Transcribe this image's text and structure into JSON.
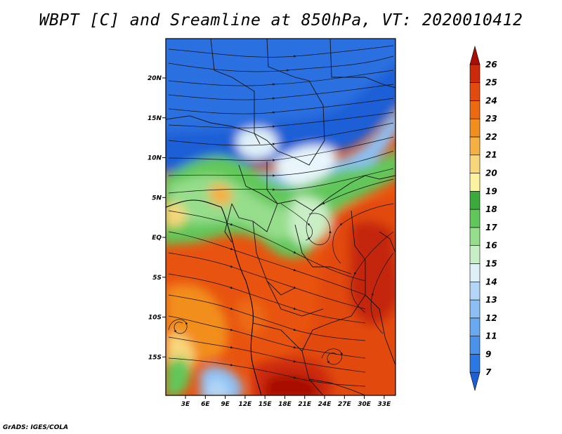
{
  "title": "WBPT [C] and Sreamline at 850hPa, VT: 2020010412",
  "footer": "GrADS: IGES/COLA",
  "map": {
    "variable": "WBPT",
    "units": "C",
    "level": "850hPa",
    "lat_labels": [
      "20N",
      "15N",
      "10N",
      "5N",
      "EQ",
      "5S",
      "10S",
      "15S"
    ],
    "lat_values": [
      20,
      15,
      10,
      5,
      0,
      -5,
      -10,
      -15
    ],
    "lon_labels": [
      "3E",
      "6E",
      "9E",
      "12E",
      "15E",
      "18E",
      "21E",
      "24E",
      "27E",
      "30E",
      "33E"
    ],
    "lon_values": [
      3,
      6,
      9,
      12,
      15,
      18,
      21,
      24,
      27,
      30,
      33
    ]
  },
  "colorbar": {
    "labels": [
      "7",
      "9",
      "11",
      "12",
      "13",
      "14",
      "15",
      "16",
      "17",
      "18",
      "19",
      "20",
      "21",
      "22",
      "23",
      "24",
      "25",
      "26"
    ],
    "colors": [
      "#1e5fd6",
      "#2b78e4",
      "#4b92ea",
      "#6aa8ef",
      "#8cbff3",
      "#b3d6f7",
      "#dff0f8",
      "#c9eec5",
      "#96dd8c",
      "#62c75a",
      "#3aab3a",
      "#fbf3a2",
      "#f8d77c",
      "#f5b043",
      "#f28e1e",
      "#ec6a12",
      "#e24a0e",
      "#cc2a0a",
      "#a80e06"
    ]
  }
}
